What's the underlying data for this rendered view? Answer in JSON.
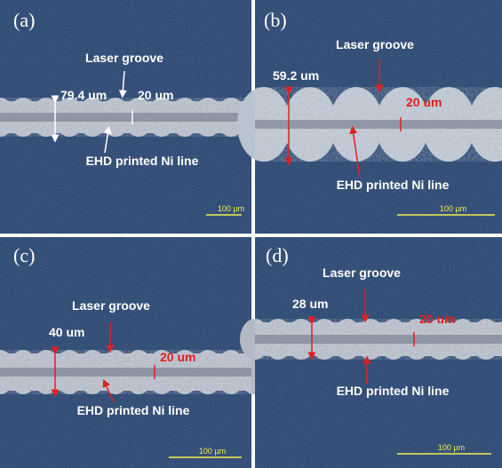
{
  "panels": [
    {
      "label": "(a)",
      "groove_label": "Laser groove",
      "width_label": "79.4 um",
      "groove_width": "20 um",
      "line_label": "EHD printed Ni line",
      "scale_bar": "100 µm"
    },
    {
      "label": "(b)",
      "groove_label": "Laser groove",
      "width_label": "59.2 um",
      "groove_width": "20 um",
      "line_label": "EHD printed Ni line",
      "scale_bar": "100 µm"
    },
    {
      "label": "(c)",
      "groove_label": "Laser groove",
      "width_label": "40 um",
      "groove_width": "20 um",
      "line_label": "EHD printed Ni line",
      "scale_bar": "100 µm"
    },
    {
      "label": "(d)",
      "groove_label": "Laser groove",
      "width_label": "28 um",
      "groove_width": "20 um",
      "line_label": "EHD printed Ni line",
      "scale_bar": "100 µm"
    }
  ]
}
